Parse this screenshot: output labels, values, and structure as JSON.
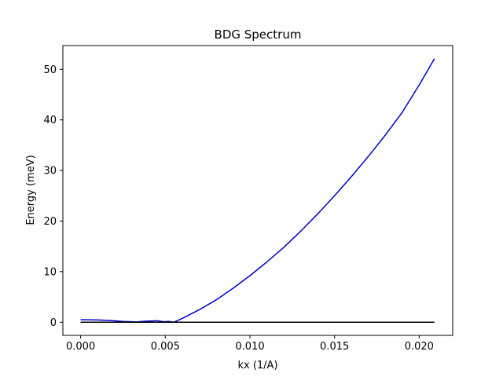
{
  "chart_data": {
    "type": "line",
    "title": "BDG Spectrum",
    "xlabel": "kx (1/A)",
    "ylabel": "Energy (meV)",
    "xlim": [
      -0.00105,
      0.02198
    ],
    "ylim": [
      -2.6,
      54.7
    ],
    "xticks": [
      {
        "value": 0.0,
        "label": "0.000"
      },
      {
        "value": 0.005,
        "label": "0.005"
      },
      {
        "value": 0.01,
        "label": "0.010"
      },
      {
        "value": 0.015,
        "label": "0.015"
      },
      {
        "value": 0.02,
        "label": "0.020"
      }
    ],
    "yticks": [
      {
        "value": 0,
        "label": "0"
      },
      {
        "value": 10,
        "label": "10"
      },
      {
        "value": 20,
        "label": "20"
      },
      {
        "value": 30,
        "label": "30"
      },
      {
        "value": 40,
        "label": "40"
      },
      {
        "value": 50,
        "label": "50"
      }
    ],
    "grid": false,
    "series": [
      {
        "color": "#0000cc",
        "x": [
          0.0,
          0.001,
          0.0017,
          0.0025,
          0.0033,
          0.0038,
          0.0045,
          0.0049,
          0.0052,
          0.0055,
          0.006,
          0.007,
          0.008,
          0.009,
          0.01,
          0.011,
          0.012,
          0.013,
          0.014,
          0.015,
          0.016,
          0.017,
          0.018,
          0.019,
          0.02,
          0.0209
        ],
        "y": [
          0.5,
          0.45,
          0.35,
          0.15,
          0.05,
          0.2,
          0.3,
          0.1,
          0.15,
          0.0,
          0.75,
          2.45,
          4.4,
          6.7,
          9.2,
          11.9,
          14.8,
          18.0,
          21.4,
          25.0,
          28.8,
          32.8,
          37.0,
          41.5,
          46.9,
          52.1
        ]
      },
      {
        "color": "#000000",
        "x": [
          0.0,
          0.0209
        ],
        "y": [
          0.0,
          0.0
        ]
      }
    ]
  }
}
